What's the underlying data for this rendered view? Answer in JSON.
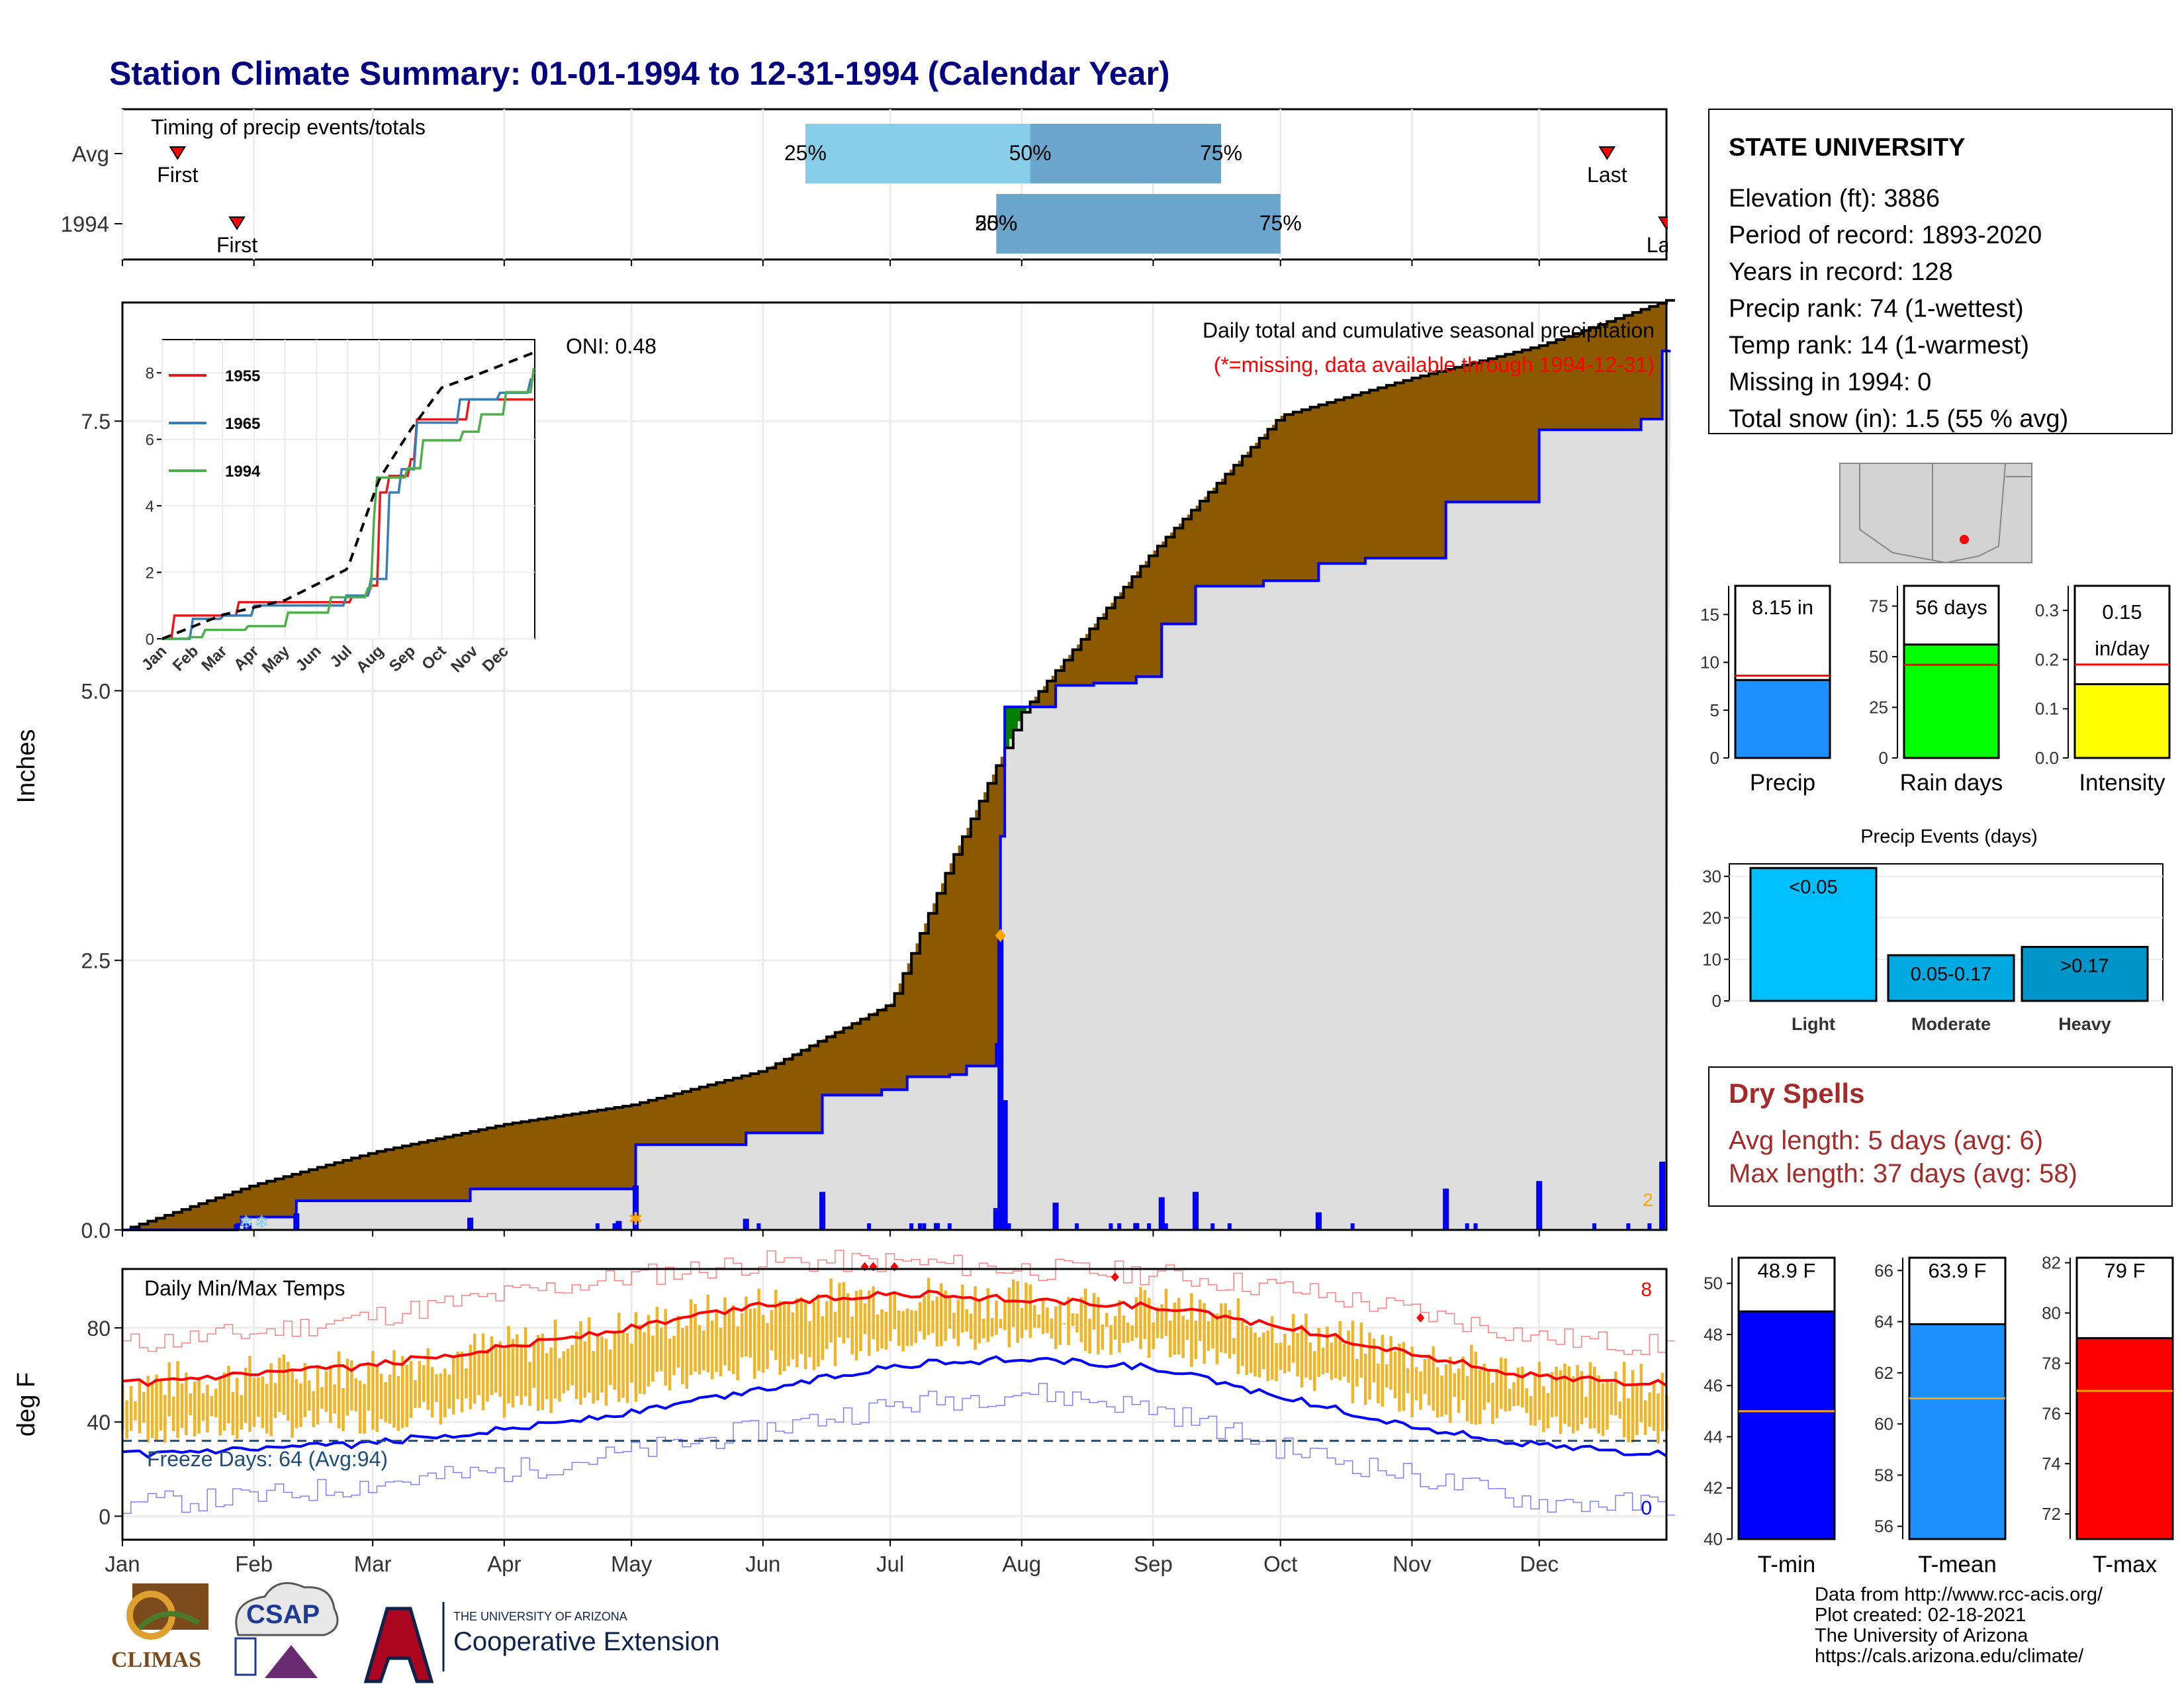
{
  "title": "Station Climate Summary: 01-01-1994 to 12-31-1994 (Calendar Year)",
  "timing": {
    "title": "Timing of precip events/totals",
    "rows": [
      {
        "label": "Avg",
        "first_doy": 14,
        "last_doy": 351,
        "p25_doy": 162,
        "p50_doy": 215,
        "p75_doy": 260,
        "first_label": "First",
        "last_label": "Last",
        "p25_label": "25%",
        "p50_label": "50%",
        "p75_label": "75%"
      },
      {
        "label": "1994",
        "first_doy": 28,
        "last_doy": 365,
        "p25_doy": 207,
        "p50_doy": 207,
        "p75_doy": 274,
        "first_label": "First",
        "last_label": "Last",
        "p25_label": "25%",
        "p50_label": "50%",
        "p75_label": "75%"
      }
    ]
  },
  "station": {
    "name": "STATE UNIVERSITY",
    "lines": [
      "Elevation (ft): 3886",
      "Period of record: 1893-2020",
      "Years in record: 128",
      "Precip rank: 74 (1-wettest)",
      "Temp rank: 14 (1-warmest)",
      "Missing in 1994: 0",
      "Total snow (in): 1.5 (55 % avg)"
    ]
  },
  "months": [
    "Jan",
    "Feb",
    "Mar",
    "Apr",
    "May",
    "Jun",
    "Jul",
    "Aug",
    "Sep",
    "Oct",
    "Nov",
    "Dec"
  ],
  "precip_panel": {
    "ylabel": "Inches",
    "yticks": [
      "0.0",
      "2.5",
      "5.0",
      "7.5"
    ],
    "oni": "ONI: 0.48",
    "note1": "Daily total and cumulative seasonal precipitation",
    "note2": "(*=missing, data available through 1994-12-31)",
    "right_count": "2"
  },
  "inset": {
    "yticks": [
      "0",
      "2",
      "4",
      "6",
      "8"
    ],
    "months": [
      "Jan",
      "Feb",
      "Mar",
      "Apr",
      "May",
      "Jun",
      "Jul",
      "Aug",
      "Sep",
      "Oct",
      "Nov",
      "Dec"
    ],
    "legend": [
      {
        "name": "1955",
        "color": "#e41a1c"
      },
      {
        "name": "1965",
        "color": "#377eb8"
      },
      {
        "name": "1994",
        "color": "#4daf4a"
      }
    ]
  },
  "temp_panel": {
    "ylabel": "deg F",
    "title": "Daily Min/Max Temps",
    "yticks": [
      "0",
      "40",
      "80"
    ],
    "freeze": "Freeze Days: 64 (Avg:94)",
    "count_top": "8",
    "count_bottom": "0"
  },
  "chart_data": [
    {
      "type": "area",
      "title": "Daily total and cumulative seasonal precipitation",
      "ylabel": "Inches",
      "xlabel": "",
      "ylim": [
        0,
        8.6
      ],
      "x": [
        "Jan",
        "Feb",
        "Mar",
        "Apr",
        "May",
        "Jun",
        "Jul",
        "Aug",
        "Sep",
        "Oct",
        "Nov",
        "Dec"
      ],
      "series": [
        {
          "name": "avg_cumulative",
          "points": [
            [
              1,
              0
            ],
            [
              32,
              0.42
            ],
            [
              60,
              0.72
            ],
            [
              91,
              0.98
            ],
            [
              121,
              1.16
            ],
            [
              152,
              1.48
            ],
            [
              182,
              2.1
            ],
            [
              196,
              3.4
            ],
            [
              213,
              4.8
            ],
            [
              244,
              6.3
            ],
            [
              274,
              7.55
            ],
            [
              305,
              7.9
            ],
            [
              335,
              8.2
            ],
            [
              365,
              8.62
            ]
          ]
        },
        {
          "name": "1994_cumulative",
          "points": [
            [
              1,
              0
            ],
            [
              28,
              0.05
            ],
            [
              29,
              0.12
            ],
            [
              42,
              0.27
            ],
            [
              83,
              0.38
            ],
            [
              122,
              0.79
            ],
            [
              148,
              0.9
            ],
            [
              166,
              1.25
            ],
            [
              180,
              1.3
            ],
            [
              186,
              1.42
            ],
            [
              196,
              1.44
            ],
            [
              200,
              1.52
            ],
            [
              207,
              1.72
            ],
            [
              208,
              3.65
            ],
            [
              209,
              4.85
            ],
            [
              221,
              5.05
            ],
            [
              230,
              5.07
            ],
            [
              240,
              5.13
            ],
            [
              246,
              5.62
            ],
            [
              254,
              5.97
            ],
            [
              270,
              6.02
            ],
            [
              283,
              6.18
            ],
            [
              294,
              6.23
            ],
            [
              313,
              6.75
            ],
            [
              335,
              7.42
            ],
            [
              359,
              7.52
            ],
            [
              364,
              8.15
            ]
          ]
        },
        {
          "name": "1994_daily",
          "points": [
            [
              28,
              0.05
            ],
            [
              42,
              0.15
            ],
            [
              83,
              0.11
            ],
            [
              118,
              0.08
            ],
            [
              122,
              0.41
            ],
            [
              148,
              0.1
            ],
            [
              166,
              0.35
            ],
            [
              193,
              0.06
            ],
            [
              207,
              0.2
            ],
            [
              208,
              2.73
            ],
            [
              209,
              1.2
            ],
            [
              221,
              0.25
            ],
            [
              240,
              0.06
            ],
            [
              246,
              0.3
            ],
            [
              254,
              0.35
            ],
            [
              283,
              0.16
            ],
            [
              313,
              0.38
            ],
            [
              335,
              0.45
            ],
            [
              364,
              0.63
            ]
          ]
        }
      ]
    },
    {
      "type": "line",
      "title": "",
      "ylim": [
        0,
        9
      ],
      "x": [
        "Jan",
        "Feb",
        "Mar",
        "Apr",
        "May",
        "Jun",
        "Jul",
        "Aug",
        "Sep",
        "Oct",
        "Nov",
        "Dec"
      ],
      "series": [
        {
          "name": "1955",
          "points": [
            [
              1,
              0
            ],
            [
              12,
              0.7
            ],
            [
              60,
              0.7
            ],
            [
              75,
              1.1
            ],
            [
              185,
              1.3
            ],
            [
              205,
              1.6
            ],
            [
              213,
              4.4
            ],
            [
              222,
              4.9
            ],
            [
              244,
              5.4
            ],
            [
              250,
              6.6
            ],
            [
              300,
              7.2
            ],
            [
              365,
              7.2
            ]
          ]
        },
        {
          "name": "1965",
          "points": [
            [
              1,
              0
            ],
            [
              30,
              0.6
            ],
            [
              60,
              0.7
            ],
            [
              90,
              1.0
            ],
            [
              180,
              1.3
            ],
            [
              205,
              1.8
            ],
            [
              222,
              4.4
            ],
            [
              235,
              5.1
            ],
            [
              250,
              6.5
            ],
            [
              290,
              7.2
            ],
            [
              330,
              7.4
            ],
            [
              360,
              7.8
            ],
            [
              365,
              8.3
            ]
          ]
        },
        {
          "name": "1994",
          "points": [
            [
              1,
              0
            ],
            [
              28,
              0.05
            ],
            [
              42,
              0.27
            ],
            [
              83,
              0.38
            ],
            [
              122,
              0.79
            ],
            [
              166,
              1.25
            ],
            [
              200,
              1.52
            ],
            [
              208,
              3.65
            ],
            [
              209,
              4.85
            ],
            [
              240,
              5.13
            ],
            [
              254,
              5.97
            ],
            [
              294,
              6.23
            ],
            [
              313,
              6.75
            ],
            [
              335,
              7.42
            ],
            [
              364,
              8.15
            ]
          ]
        },
        {
          "name": "avg",
          "points": [
            [
              1,
              0
            ],
            [
              60,
              0.72
            ],
            [
              121,
              1.16
            ],
            [
              182,
              2.1
            ],
            [
              213,
              4.8
            ],
            [
              244,
              6.3
            ],
            [
              274,
              7.55
            ],
            [
              305,
              7.9
            ],
            [
              365,
              8.62
            ]
          ]
        }
      ]
    },
    {
      "type": "line",
      "title": "Daily Min/Max Temps",
      "ylabel": "deg F",
      "ylim": [
        -10,
        105
      ],
      "x": [
        "Jan",
        "Feb",
        "Mar",
        "Apr",
        "May",
        "Jun",
        "Jul",
        "Aug",
        "Sep",
        "Oct",
        "Nov",
        "Dec"
      ],
      "series": [
        {
          "name": "avg_tmax",
          "points": [
            [
              1,
              56
            ],
            [
              32,
              60
            ],
            [
              60,
              64
            ],
            [
              91,
              72
            ],
            [
              121,
              80
            ],
            [
              152,
              90
            ],
            [
              182,
              95
            ],
            [
              213,
              92
            ],
            [
              244,
              89
            ],
            [
              274,
              81
            ],
            [
              305,
              69
            ],
            [
              335,
              59
            ],
            [
              365,
              56
            ]
          ]
        },
        {
          "name": "avg_tmin",
          "points": [
            [
              1,
              26
            ],
            [
              32,
              28
            ],
            [
              60,
              31
            ],
            [
              91,
              37
            ],
            [
              121,
              44
            ],
            [
              152,
              54
            ],
            [
              182,
              64
            ],
            [
              213,
              67
            ],
            [
              244,
              63
            ],
            [
              274,
              51
            ],
            [
              305,
              38
            ],
            [
              335,
              30
            ],
            [
              365,
              26
            ]
          ]
        },
        {
          "name": "record_high",
          "points": [
            [
              1,
              73
            ],
            [
              32,
              78
            ],
            [
              60,
              85
            ],
            [
              91,
              94
            ],
            [
              121,
              102
            ],
            [
              152,
              108
            ],
            [
              182,
              108
            ],
            [
              213,
              105
            ],
            [
              244,
              103
            ],
            [
              274,
              97
            ],
            [
              305,
              87
            ],
            [
              335,
              76
            ],
            [
              365,
              72
            ]
          ]
        },
        {
          "name": "record_low",
          "points": [
            [
              1,
              5
            ],
            [
              32,
              8
            ],
            [
              60,
              14
            ],
            [
              91,
              19
            ],
            [
              121,
              27
            ],
            [
              152,
              37
            ],
            [
              182,
              47
            ],
            [
              213,
              53
            ],
            [
              244,
              46
            ],
            [
              274,
              29
            ],
            [
              305,
              17
            ],
            [
              335,
              6
            ],
            [
              365,
              5
            ]
          ]
        }
      ],
      "freeze_line": 32
    },
    {
      "type": "bar",
      "categories": [
        "Precip",
        "Rain days",
        "Intensity"
      ],
      "series": [
        {
          "name": "1994",
          "values": [
            8.15,
            56,
            0.15
          ]
        },
        {
          "name": "avg",
          "values": [
            8.6,
            46,
            0.19
          ]
        }
      ],
      "labels": [
        "8.15 in",
        "56 days",
        "0.15 in/day"
      ],
      "ylims": [
        [
          0,
          18
        ],
        [
          0,
          85
        ],
        [
          0,
          0.35
        ]
      ],
      "yticks": [
        [
          "0",
          "5",
          "10",
          "15"
        ],
        [
          "0",
          "25",
          "50",
          "75"
        ],
        [
          "0.0",
          "0.1",
          "0.2",
          "0.3"
        ]
      ],
      "colors": [
        "#1e90ff",
        "#00ff00",
        "#ffff00"
      ]
    },
    {
      "type": "bar",
      "title": "Precip Events (days)",
      "categories": [
        "Light",
        "Moderate",
        "Heavy"
      ],
      "values": [
        32,
        11,
        13
      ],
      "labels": [
        "<0.05",
        "0.05-0.17",
        ">0.17"
      ],
      "ylim": [
        0,
        33
      ],
      "yticks": [
        "0",
        "10",
        "20",
        "30"
      ],
      "colors": [
        "#00bfff",
        "#00a9e0",
        "#0095c8"
      ]
    },
    {
      "type": "bar",
      "categories": [
        "T-min",
        "T-mean",
        "T-max"
      ],
      "values": [
        48.9,
        63.9,
        79
      ],
      "avg": [
        45,
        61,
        76.9
      ],
      "labels": [
        "48.9 F",
        "63.9 F",
        "79 F"
      ],
      "ylims": [
        [
          40,
          51
        ],
        [
          55.5,
          66.5
        ],
        [
          71,
          82.2
        ]
      ],
      "yticks": [
        [
          "40",
          "42",
          "44",
          "46",
          "48",
          "50"
        ],
        [
          "56",
          "58",
          "60",
          "62",
          "64",
          "66"
        ],
        [
          "72",
          "74",
          "76",
          "78",
          "80",
          "82"
        ]
      ],
      "colors": [
        "#0000ff",
        "#1e90ff",
        "#ff0000"
      ]
    }
  ],
  "rain_chart_names": [
    "Precip",
    "Rain days",
    "Intensity"
  ],
  "events_title": "Precip Events (days)",
  "dry_spells": {
    "title": "Dry Spells",
    "line1": "Avg length: 5 days (avg: 6)",
    "line2": "Max length: 37 days (avg: 58)"
  },
  "temp_names": [
    "T-min",
    "T-mean",
    "T-max"
  ],
  "footer": {
    "lines": [
      "Data from http://www.rcc-acis.org/",
      "Plot created: 02-18-2021",
      "The University of Arizona",
      "https://cals.arizona.edu/climate/"
    ],
    "logo_climas": "CLIMAS",
    "logo_csap": "CSAP",
    "ua_small": "THE UNIVERSITY OF ARIZONA",
    "ua_big": "Cooperative Extension"
  },
  "colors": {
    "title": "#000080",
    "brown": "#8b5a00",
    "green": "#008000",
    "blue": "#0000ff",
    "gray": "#dedede",
    "dry": "#a52a2a",
    "gold": "#f0b429"
  }
}
